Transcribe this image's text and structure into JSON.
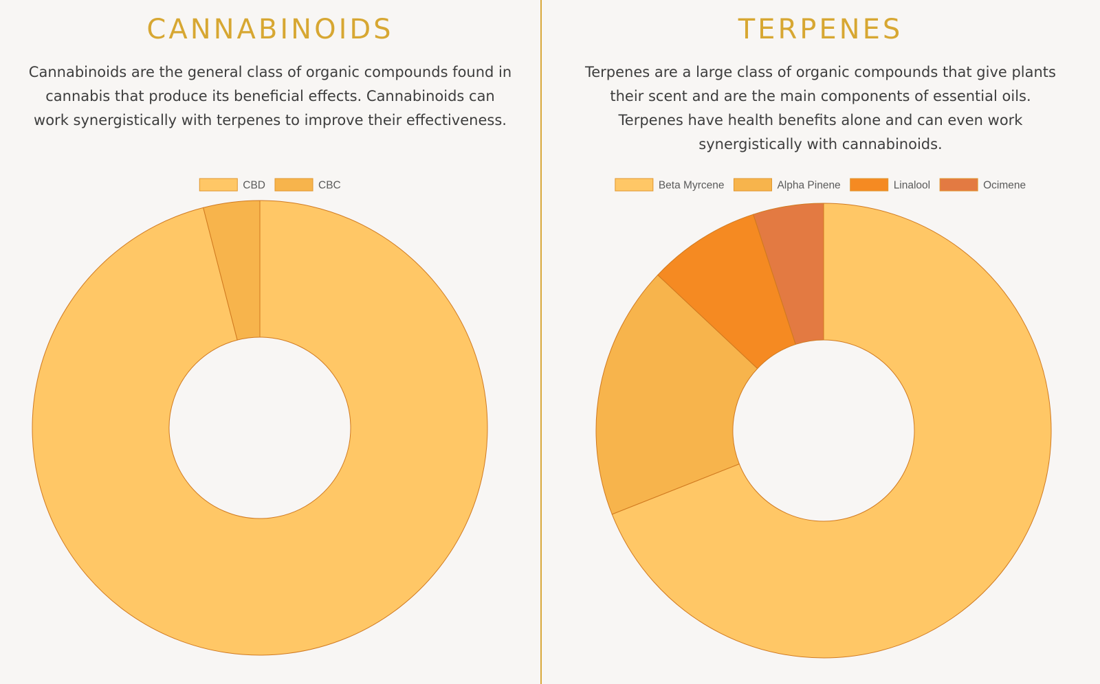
{
  "chart_data": [
    {
      "type": "pie",
      "title": "CANNABINOIDS",
      "description": "Cannabinoids are the general class of organic compounds found in cannabis that produce its beneficial effects. Cannabinoids can work synergistically with terpenes to improve their effectiveness.",
      "legend_position": "top",
      "categories": [
        "CBD",
        "CBC"
      ],
      "values": [
        96,
        4
      ],
      "colors": [
        "#ffc766",
        "#f7b44c"
      ]
    },
    {
      "type": "pie",
      "title": "TERPENES",
      "description": "Terpenes are a large class of organic compounds that give plants their scent and are the main components of essential oils. Terpenes have health benefits alone and can even work synergistically with cannabinoids.",
      "legend_position": "top",
      "categories": [
        "Beta Myrcene",
        "Alpha Pinene",
        "Linalool",
        "Ocimene"
      ],
      "values": [
        69,
        18,
        8,
        5
      ],
      "colors": [
        "#ffc766",
        "#f7b44c",
        "#f58a22",
        "#e37a42"
      ]
    }
  ]
}
